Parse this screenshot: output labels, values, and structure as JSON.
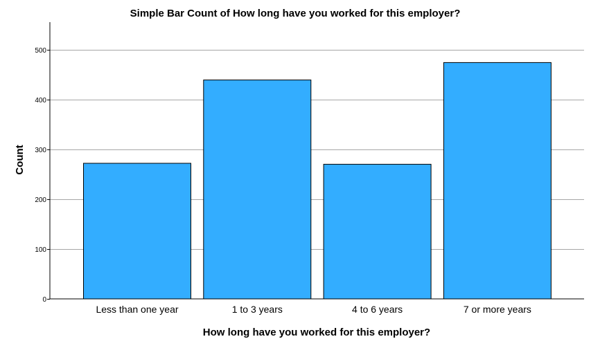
{
  "chart_data": {
    "type": "bar",
    "title": "Simple Bar Count of How long have you worked for this employer?",
    "xlabel": "How long have you worked for this employer?",
    "ylabel": "Count",
    "categories": [
      "Less than one year",
      "1 to 3 years",
      "4 to 6 years",
      "7 or more years"
    ],
    "values": [
      272,
      439,
      270,
      474
    ],
    "ylim": [
      0,
      555
    ],
    "yticks": [
      0,
      100,
      200,
      300,
      400,
      500
    ],
    "grid": true,
    "bar_color": "#33adff"
  }
}
